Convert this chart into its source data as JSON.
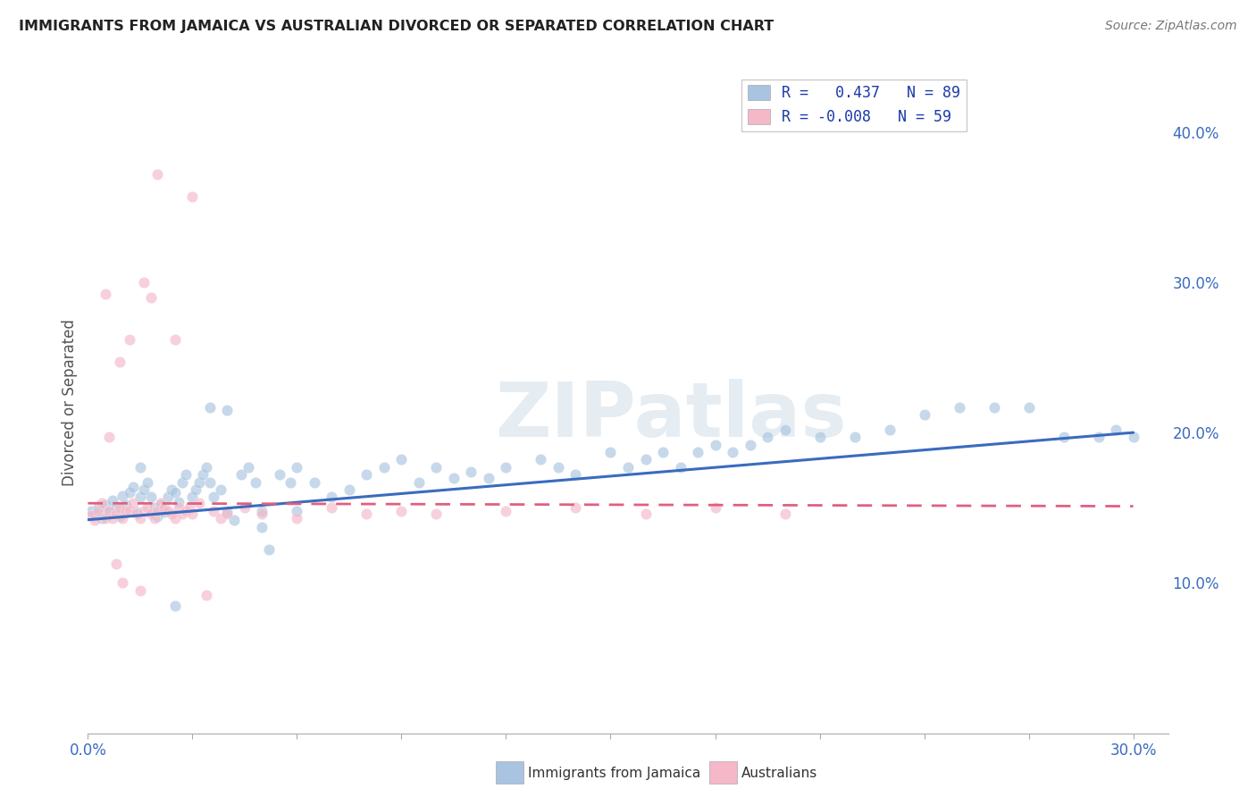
{
  "title": "IMMIGRANTS FROM JAMAICA VS AUSTRALIAN DIVORCED OR SEPARATED CORRELATION CHART",
  "source": "Source: ZipAtlas.com",
  "ylabel": "Divorced or Separated",
  "right_yticks": [
    "10.0%",
    "20.0%",
    "30.0%",
    "40.0%"
  ],
  "right_ytick_vals": [
    0.1,
    0.2,
    0.3,
    0.4
  ],
  "xlim": [
    0.0,
    0.31
  ],
  "ylim": [
    0.0,
    0.44
  ],
  "legend_blue_label": "R =   0.437   N = 89",
  "legend_pink_label": "R = -0.008   N = 59",
  "legend_blue_color": "#a8c4e0",
  "legend_pink_color": "#f4b8c8",
  "watermark": "ZIPatlas",
  "blue_line_x": [
    0.0,
    0.3
  ],
  "blue_line_y": [
    0.142,
    0.2
  ],
  "pink_line_x": [
    0.0,
    0.3
  ],
  "pink_line_y": [
    0.153,
    0.151
  ],
  "grid_color": "#dddddd",
  "scatter_alpha": 0.65,
  "scatter_size": 80,
  "blue_scatter_x": [
    0.001,
    0.002,
    0.003,
    0.004,
    0.005,
    0.006,
    0.007,
    0.008,
    0.009,
    0.01,
    0.011,
    0.012,
    0.013,
    0.014,
    0.015,
    0.016,
    0.017,
    0.018,
    0.019,
    0.02,
    0.021,
    0.022,
    0.023,
    0.024,
    0.025,
    0.026,
    0.027,
    0.028,
    0.03,
    0.031,
    0.032,
    0.033,
    0.034,
    0.035,
    0.036,
    0.038,
    0.04,
    0.042,
    0.044,
    0.046,
    0.048,
    0.05,
    0.052,
    0.055,
    0.058,
    0.06,
    0.065,
    0.07,
    0.075,
    0.08,
    0.085,
    0.09,
    0.095,
    0.1,
    0.105,
    0.11,
    0.115,
    0.12,
    0.13,
    0.135,
    0.14,
    0.15,
    0.155,
    0.16,
    0.165,
    0.17,
    0.175,
    0.18,
    0.185,
    0.19,
    0.195,
    0.2,
    0.21,
    0.22,
    0.23,
    0.24,
    0.25,
    0.26,
    0.27,
    0.28,
    0.29,
    0.295,
    0.3,
    0.035,
    0.025,
    0.015,
    0.04,
    0.05,
    0.06
  ],
  "blue_scatter_y": [
    0.148,
    0.145,
    0.15,
    0.143,
    0.152,
    0.147,
    0.155,
    0.15,
    0.144,
    0.158,
    0.152,
    0.16,
    0.164,
    0.147,
    0.157,
    0.162,
    0.167,
    0.157,
    0.15,
    0.144,
    0.152,
    0.147,
    0.157,
    0.162,
    0.16,
    0.154,
    0.167,
    0.172,
    0.157,
    0.162,
    0.167,
    0.172,
    0.177,
    0.167,
    0.157,
    0.162,
    0.147,
    0.142,
    0.172,
    0.177,
    0.167,
    0.137,
    0.122,
    0.172,
    0.167,
    0.177,
    0.167,
    0.157,
    0.162,
    0.172,
    0.177,
    0.182,
    0.167,
    0.177,
    0.17,
    0.174,
    0.17,
    0.177,
    0.182,
    0.177,
    0.172,
    0.187,
    0.177,
    0.182,
    0.187,
    0.177,
    0.187,
    0.192,
    0.187,
    0.192,
    0.197,
    0.202,
    0.197,
    0.197,
    0.202,
    0.212,
    0.217,
    0.217,
    0.217,
    0.197,
    0.197,
    0.202,
    0.197,
    0.217,
    0.085,
    0.177,
    0.215,
    0.148,
    0.148
  ],
  "pink_scatter_x": [
    0.001,
    0.002,
    0.003,
    0.004,
    0.005,
    0.006,
    0.007,
    0.008,
    0.009,
    0.01,
    0.011,
    0.012,
    0.013,
    0.014,
    0.015,
    0.016,
    0.017,
    0.018,
    0.019,
    0.02,
    0.021,
    0.022,
    0.023,
    0.024,
    0.025,
    0.026,
    0.027,
    0.028,
    0.029,
    0.03,
    0.032,
    0.034,
    0.036,
    0.038,
    0.04,
    0.045,
    0.05,
    0.06,
    0.07,
    0.08,
    0.09,
    0.1,
    0.12,
    0.14,
    0.16,
    0.18,
    0.2,
    0.015,
    0.01,
    0.008,
    0.005,
    0.012,
    0.018,
    0.025,
    0.03,
    0.006,
    0.009,
    0.02,
    0.016
  ],
  "pink_scatter_y": [
    0.145,
    0.142,
    0.148,
    0.153,
    0.143,
    0.148,
    0.143,
    0.146,
    0.15,
    0.143,
    0.148,
    0.148,
    0.153,
    0.146,
    0.143,
    0.148,
    0.15,
    0.146,
    0.143,
    0.148,
    0.153,
    0.15,
    0.148,
    0.146,
    0.143,
    0.15,
    0.146,
    0.148,
    0.15,
    0.146,
    0.153,
    0.092,
    0.148,
    0.143,
    0.146,
    0.15,
    0.146,
    0.143,
    0.15,
    0.146,
    0.148,
    0.146,
    0.148,
    0.15,
    0.146,
    0.15,
    0.146,
    0.095,
    0.1,
    0.113,
    0.292,
    0.262,
    0.29,
    0.262,
    0.357,
    0.197,
    0.247,
    0.372,
    0.3
  ]
}
